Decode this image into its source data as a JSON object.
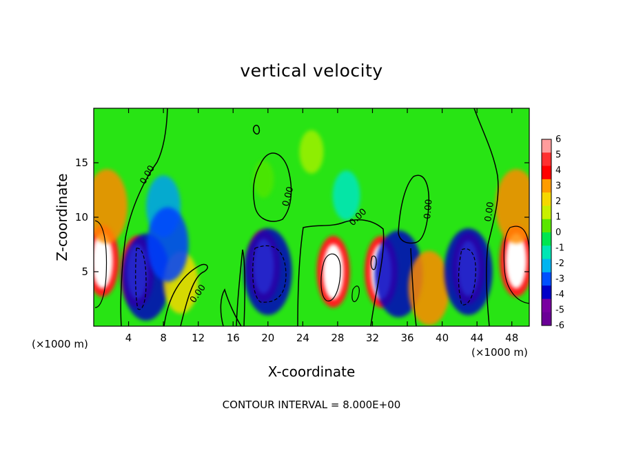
{
  "chart_data": {
    "type": "heatmap",
    "title": "vertical velocity",
    "xlabel": "X-coordinate",
    "ylabel": "Z-coordinate",
    "x_unit_label_left": "(×1000 m)",
    "x_unit_label_right": "(×1000 m)",
    "footer": "CONTOUR INTERVAL = 8.000E+00",
    "xlim": [
      0,
      50
    ],
    "ylim": [
      0,
      20
    ],
    "x_ticks": [
      4,
      8,
      12,
      16,
      20,
      24,
      28,
      32,
      36,
      40,
      44,
      48
    ],
    "y_ticks": [
      5,
      10,
      15
    ],
    "colorbar": {
      "ticks": [
        6,
        5,
        4,
        3,
        2,
        1,
        0,
        -1,
        -2,
        -3,
        -4,
        -5,
        -6
      ],
      "colors": [
        "#ff9c9c",
        "#ff3030",
        "#ff0000",
        "#ff9c00",
        "#f5d800",
        "#c8f000",
        "#5ae600",
        "#00e650",
        "#00e6b4",
        "#00b4f0",
        "#0050ff",
        "#0000c8",
        "#7800a0",
        "#6a0096"
      ]
    },
    "contour_labels": [
      "0.00",
      "0.00",
      "0.00",
      "0.00",
      "0.00",
      "0.00",
      "0.00"
    ],
    "features": [
      {
        "x": 1,
        "z": 6,
        "value": 8
      },
      {
        "x": 5,
        "z": 5,
        "value": 8
      },
      {
        "x": 6,
        "z": 4.5,
        "value": -5
      },
      {
        "x": 10,
        "z": 4,
        "value": 3
      },
      {
        "x": 19.5,
        "z": 5.5,
        "value": 8
      },
      {
        "x": 20,
        "z": 5,
        "value": -5
      },
      {
        "x": 27.5,
        "z": 5,
        "value": 8
      },
      {
        "x": 33,
        "z": 5,
        "value": 8
      },
      {
        "x": 35,
        "z": 4.8,
        "value": -5
      },
      {
        "x": 38.5,
        "z": 3.5,
        "value": 4
      },
      {
        "x": 43,
        "z": 5.3,
        "value": 8
      },
      {
        "x": 43,
        "z": 5,
        "value": -5
      },
      {
        "x": 48.5,
        "z": 6,
        "value": 8
      },
      {
        "x": 1.5,
        "z": 11,
        "value": 4
      },
      {
        "x": 48.5,
        "z": 11,
        "value": 4
      },
      {
        "x": 19.5,
        "z": 13.5,
        "value": 1
      },
      {
        "x": 25,
        "z": 16,
        "value": 1.5
      },
      {
        "x": 29,
        "z": 12,
        "value": -2
      },
      {
        "x": 8,
        "z": 11,
        "value": -3
      },
      {
        "x": 8.5,
        "z": 7.5,
        "value": -4
      }
    ]
  }
}
